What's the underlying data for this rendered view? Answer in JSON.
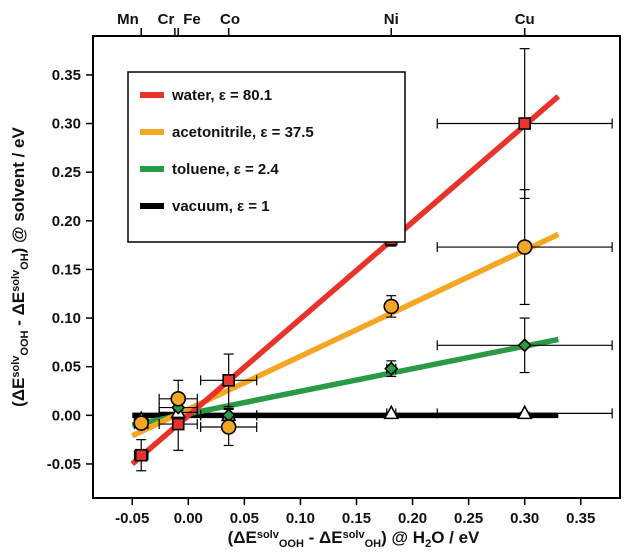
{
  "chart_data": {
    "type": "scatter",
    "x_label": {
      "parts": [
        {
          "t": "(ΔE"
        },
        {
          "t": "solv",
          "sup": true
        },
        {
          "t": "OOH",
          "sub": true
        },
        {
          "t": " - ΔE"
        },
        {
          "t": "solv",
          "sup": true
        },
        {
          "t": "OH",
          "sub": true
        },
        {
          "t": ")  @  H"
        },
        {
          "t": "2",
          "sub": true
        },
        {
          "t": "O  /  eV"
        }
      ]
    },
    "y_label": {
      "parts": [
        {
          "t": "(ΔE"
        },
        {
          "t": "solv",
          "sup": true
        },
        {
          "t": "OOH",
          "sub": true
        },
        {
          "t": " - ΔE"
        },
        {
          "t": "solv",
          "sup": true
        },
        {
          "t": "OH",
          "sub": true
        },
        {
          "t": ")  @  solvent  /  eV"
        }
      ]
    },
    "xlim": [
      -0.085,
      0.385
    ],
    "ylim": [
      -0.085,
      0.39
    ],
    "x_ticks": [
      -0.05,
      0.0,
      0.05,
      0.1,
      0.15,
      0.2,
      0.25,
      0.3,
      0.35
    ],
    "x_tick_labels": [
      "-0.05",
      "0.00",
      "0.05",
      "0.10",
      "0.15",
      "0.20",
      "0.25",
      "0.30",
      "0.35"
    ],
    "y_ticks": [
      -0.05,
      0.0,
      0.05,
      0.1,
      0.15,
      0.2,
      0.25,
      0.3,
      0.35
    ],
    "y_tick_labels": [
      "-0.05",
      "0.00",
      "0.05",
      "0.10",
      "0.15",
      "0.20",
      "0.25",
      "0.30",
      "0.35"
    ],
    "top_axis": {
      "labels": [
        "Mn",
        "Cr",
        "Fe",
        "Co",
        "Ni",
        "Cu"
      ],
      "positions": [
        -0.042,
        -0.012,
        -0.009,
        0.036,
        0.181,
        0.3
      ]
    },
    "legend_placement": "upper-left",
    "series": [
      {
        "name": "water, ε = 80.1",
        "color": "#e8332a",
        "marker": "square",
        "fit": [
          [
            -0.05,
            -0.05
          ],
          [
            0.33,
            0.328
          ]
        ],
        "points": [
          {
            "x": -0.042,
            "y": -0.041,
            "xerr": 0.006,
            "yerr": 0.016
          },
          {
            "x": -0.009,
            "y": -0.009,
            "xerr": 0.017,
            "yerr": 0.027
          },
          {
            "x": 0.036,
            "y": 0.036,
            "xerr": 0.025,
            "yerr": 0.027
          },
          {
            "x": 0.181,
            "y": 0.181,
            "xerr": 0.004,
            "yerr": 0.007
          },
          {
            "x": 0.3,
            "y": 0.3,
            "xerr": 0.078,
            "yerr": 0.077
          }
        ]
      },
      {
        "name": "acetonitrile, ε = 37.5",
        "color": "#f5a623",
        "marker": "circle",
        "fit": [
          [
            -0.05,
            -0.021
          ],
          [
            0.33,
            0.186
          ]
        ],
        "points": [
          {
            "x": -0.042,
            "y": -0.008,
            "xerr": 0.006,
            "yerr": 0.004
          },
          {
            "x": -0.009,
            "y": 0.017,
            "xerr": 0.017,
            "yerr": 0.019
          },
          {
            "x": 0.036,
            "y": -0.012,
            "xerr": 0.025,
            "yerr": 0.019
          },
          {
            "x": 0.181,
            "y": 0.112,
            "xerr": 0.004,
            "yerr": 0.011
          },
          {
            "x": 0.3,
            "y": 0.173,
            "xerr": 0.078,
            "yerr": 0.059
          }
        ]
      },
      {
        "name": "toluene, ε = 2.4",
        "color": "#2a9a46",
        "marker": "diamond",
        "fit": [
          [
            -0.05,
            -0.01
          ],
          [
            0.33,
            0.078
          ]
        ],
        "points": [
          {
            "x": -0.042,
            "y": -0.009,
            "xerr": 0.006,
            "yerr": 0.003
          },
          {
            "x": -0.009,
            "y": 0.008,
            "xerr": 0.017,
            "yerr": 0.006
          },
          {
            "x": 0.036,
            "y": 0.0,
            "xerr": 0.025,
            "yerr": 0.006
          },
          {
            "x": 0.181,
            "y": 0.048,
            "xerr": 0.004,
            "yerr": 0.008
          },
          {
            "x": 0.3,
            "y": 0.072,
            "xerr": 0.078,
            "yerr": 0.028
          }
        ]
      },
      {
        "name": "vacuum, ε = 1",
        "color": "#000000",
        "marker": "triangle",
        "fit": [
          [
            -0.05,
            0.0
          ],
          [
            0.33,
            0.0
          ]
        ],
        "points": [
          {
            "x": -0.042,
            "y": -0.004,
            "xerr": 0.006,
            "yerr": 0.002
          },
          {
            "x": -0.009,
            "y": 0.003,
            "xerr": 0.017,
            "yerr": 0.002
          },
          {
            "x": 0.036,
            "y": 0.0,
            "xerr": 0.025,
            "yerr": 0.002
          },
          {
            "x": 0.181,
            "y": 0.002,
            "xerr": 0.004,
            "yerr": 0.001
          },
          {
            "x": 0.3,
            "y": 0.002,
            "xerr": 0.078,
            "yerr": 0.001
          }
        ]
      }
    ]
  }
}
